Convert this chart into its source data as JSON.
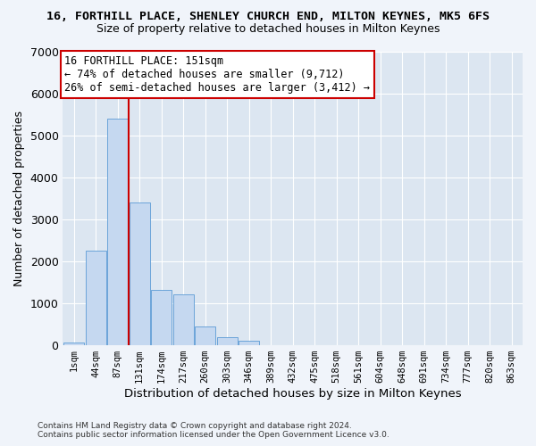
{
  "title_line1": "16, FORTHILL PLACE, SHENLEY CHURCH END, MILTON KEYNES, MK5 6FS",
  "title_line2": "Size of property relative to detached houses in Milton Keynes",
  "xlabel": "Distribution of detached houses by size in Milton Keynes",
  "ylabel": "Number of detached properties",
  "footer_line1": "Contains HM Land Registry data © Crown copyright and database right 2024.",
  "footer_line2": "Contains public sector information licensed under the Open Government Licence v3.0.",
  "annotation_title": "16 FORTHILL PLACE: 151sqm",
  "annotation_line2": "← 74% of detached houses are smaller (9,712)",
  "annotation_line3": "26% of semi-detached houses are larger (3,412) →",
  "categories": [
    "1sqm",
    "44sqm",
    "87sqm",
    "131sqm",
    "174sqm",
    "217sqm",
    "260sqm",
    "303sqm",
    "346sqm",
    "389sqm",
    "432sqm",
    "475sqm",
    "518sqm",
    "561sqm",
    "604sqm",
    "648sqm",
    "691sqm",
    "734sqm",
    "777sqm",
    "820sqm",
    "863sqm"
  ],
  "bar_values": [
    55,
    2250,
    5400,
    3400,
    1300,
    1200,
    430,
    175,
    100,
    0,
    0,
    0,
    0,
    0,
    0,
    0,
    0,
    0,
    0,
    0,
    0
  ],
  "bar_color": "#c5d8f0",
  "bar_edge_color": "#5b9bd5",
  "vline_color": "#cc0000",
  "vline_x": 2.5,
  "ylim": [
    0,
    7000
  ],
  "yticks": [
    0,
    1000,
    2000,
    3000,
    4000,
    5000,
    6000,
    7000
  ],
  "annotation_box_color": "#cc0000",
  "fig_bg_color": "#f0f4fa",
  "plot_bg_color": "#dce6f1",
  "grid_color": "#ffffff",
  "title_fontsize": 9.5,
  "subtitle_fontsize": 9.0,
  "ylabel_fontsize": 9,
  "xlabel_fontsize": 9.5
}
